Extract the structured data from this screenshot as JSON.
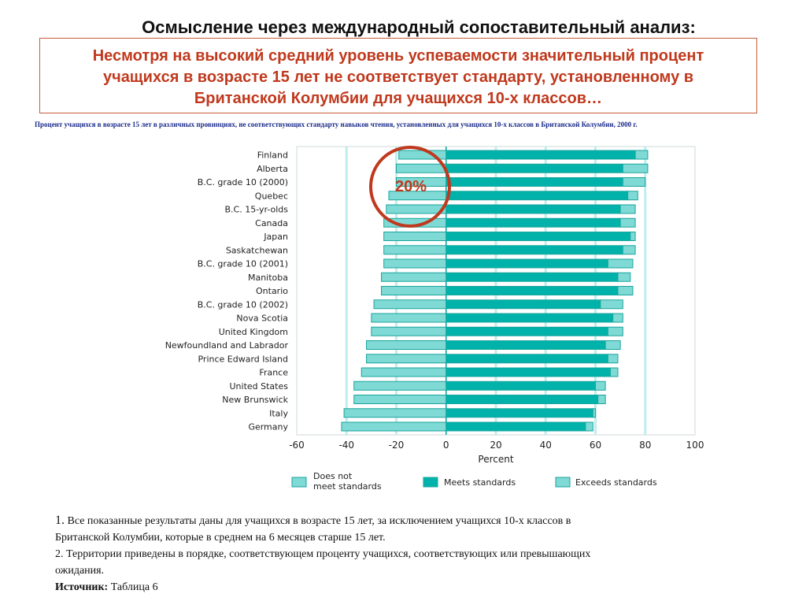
{
  "header": {
    "title": "Осмысление через международный сопоставительный анализ:",
    "subtitle_line1": "Несмотря на высокий средний уровень успеваемости значительный процент",
    "subtitle_line2": "учащихся в возрасте 15 лет не соответствует стандарту, установленному в",
    "subtitle_line3": "Британской Колумбии для учащихся 10-х классов…",
    "caption": "Процент учащихся в возрасте 15 лет в различных провинциях, не соответствующих стандарту навыков чтения, установленных для учащихся 10-х классов в Британской Колумбии, 2000 г."
  },
  "annotation": {
    "label": "20%",
    "color": "#c0391d"
  },
  "colors": {
    "meets": "#00b2a9",
    "exceeds": "#7fd9d4",
    "does_not_meet": "#7fd9d4",
    "outline": "#1aa59e",
    "grid": "#bfeeeb"
  },
  "chart_data": {
    "type": "bar",
    "orientation": "horizontal-diverging",
    "xlabel": "Percent",
    "xlim": [
      -60,
      100
    ],
    "xticks": [
      -60,
      -40,
      -20,
      0,
      20,
      40,
      60,
      80,
      100
    ],
    "legend_position": "bottom",
    "categories": [
      "Finland",
      "Alberta",
      "B.C. grade 10 (2000)",
      "Quebec",
      "B.C. 15-yr-olds",
      "Canada",
      "Japan",
      "Saskatchewan",
      "B.C. grade 10 (2001)",
      "Manitoba",
      "Ontario",
      "B.C. grade 10 (2002)",
      "Nova Scotia",
      "United Kingdom",
      "Newfoundland and Labrador",
      "Prince Edward Island",
      "France",
      "United States",
      "New Brunswick",
      "Italy",
      "Germany"
    ],
    "series": [
      {
        "name": "Does not meet standards",
        "values": [
          -19,
          -20,
          -20,
          -23,
          -24,
          -25,
          -25,
          -25,
          -25,
          -26,
          -26,
          -29,
          -30,
          -30,
          -32,
          -32,
          -34,
          -37,
          -37,
          -41,
          -42
        ]
      },
      {
        "name": "Meets standards",
        "values": [
          76,
          71,
          71,
          73,
          70,
          70,
          74,
          71,
          65,
          69,
          69,
          62,
          67,
          65,
          64,
          65,
          66,
          60,
          61,
          59,
          56
        ]
      },
      {
        "name": "Exceeds standards",
        "values": [
          5,
          10,
          9,
          4,
          6,
          6,
          2,
          5,
          10,
          5,
          6,
          9,
          4,
          6,
          6,
          4,
          3,
          4,
          3,
          1,
          3
        ]
      }
    ]
  },
  "legend": {
    "does_not_meet_1": "Does not",
    "does_not_meet_2": "meet standards",
    "meets": "Meets standards",
    "exceeds": "Exceeds standards"
  },
  "footnotes": {
    "note1_num": "1.",
    "note1_text_a": " Все показанные результаты даны для учащихся в возрасте 15 лет, за исключением учащихся 10-х классов в",
    "note1_text_b": "Британской Колумбии, которые в среднем на 6 месяцев старше 15 лет.",
    "note2_a": "2. Территории приведены в порядке, соответствующем проценту учащихся, соответствующих или превышающих",
    "note2_b": "ожидания.",
    "source_label": "Источник:",
    "source_value": " Таблица 6"
  }
}
